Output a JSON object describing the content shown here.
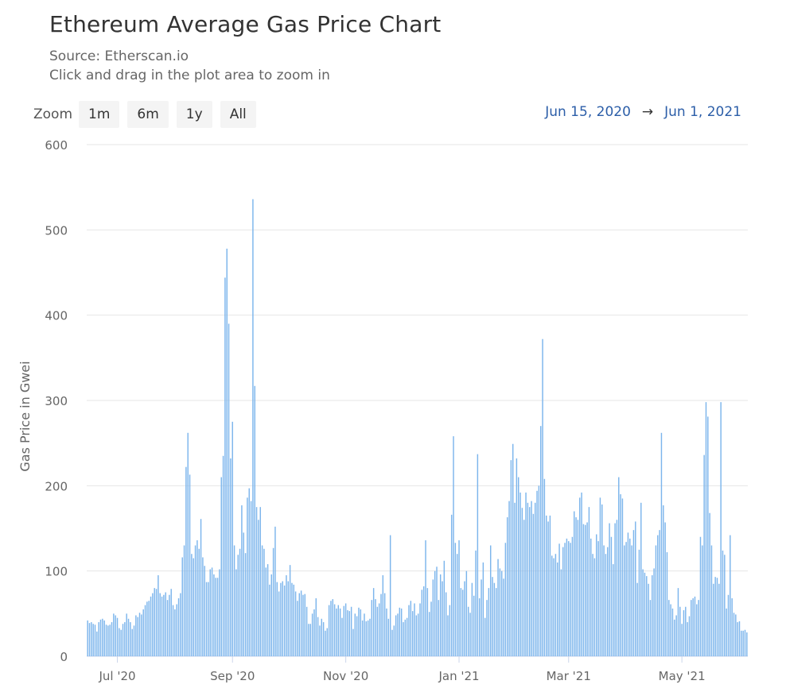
{
  "header": {
    "title": "Ethereum Average Gas Price Chart",
    "source": "Source: Etherscan.io",
    "hint": "Click and drag in the plot area to zoom in"
  },
  "zoom": {
    "label": "Zoom",
    "buttons": [
      "1m",
      "6m",
      "1y",
      "All"
    ]
  },
  "range": {
    "from": "Jun 15, 2020",
    "arrow": "→",
    "to": "Jun 1, 2021"
  },
  "colors": {
    "bar": "#7cb5ec",
    "grid": "#e6e6e6",
    "range_text": "#2c5ea8"
  },
  "chart_data": {
    "type": "bar",
    "title": "Ethereum Average Gas Price Chart",
    "xlabel": "",
    "ylabel": "Gas Price in Gwei",
    "ylim": [
      0,
      600
    ],
    "yticks": [
      0,
      100,
      200,
      300,
      400,
      500,
      600
    ],
    "x_start": "2020-06-15",
    "x_end": "2021-06-01",
    "xticks": [
      {
        "label": "Jul '20",
        "day": 16
      },
      {
        "label": "Sep '20",
        "day": 78
      },
      {
        "label": "Nov '20",
        "day": 139
      },
      {
        "label": "Jan '21",
        "day": 200
      },
      {
        "label": "Mar '21",
        "day": 259
      },
      {
        "label": "May '21",
        "day": 320
      }
    ],
    "values": [
      42,
      39,
      40,
      38,
      37,
      29,
      40,
      43,
      44,
      42,
      37,
      36,
      37,
      40,
      50,
      48,
      45,
      33,
      31,
      38,
      40,
      50,
      44,
      40,
      32,
      36,
      48,
      46,
      51,
      49,
      55,
      60,
      64,
      65,
      70,
      74,
      80,
      79,
      95,
      74,
      70,
      72,
      75,
      66,
      72,
      79,
      60,
      55,
      61,
      68,
      74,
      116,
      130,
      222,
      262,
      213,
      120,
      115,
      130,
      136,
      126,
      161,
      116,
      106,
      87,
      87,
      102,
      104,
      96,
      92,
      92,
      102,
      210,
      235,
      444,
      478,
      390,
      232,
      275,
      130,
      102,
      119,
      126,
      177,
      145,
      121,
      186,
      197,
      182,
      536,
      317,
      175,
      160,
      175,
      130,
      126,
      104,
      108,
      84,
      96,
      127,
      152,
      87,
      76,
      86,
      88,
      83,
      95,
      88,
      107,
      86,
      84,
      76,
      65,
      74,
      77,
      72,
      73,
      58,
      38,
      38,
      50,
      55,
      68,
      46,
      36,
      44,
      40,
      30,
      33,
      60,
      65,
      67,
      61,
      56,
      60,
      56,
      45,
      59,
      62,
      54,
      53,
      58,
      32,
      50,
      47,
      57,
      55,
      42,
      50,
      41,
      42,
      44,
      66,
      80,
      67,
      58,
      62,
      73,
      95,
      74,
      56,
      44,
      142,
      31,
      36,
      48,
      50,
      57,
      56,
      40,
      43,
      45,
      60,
      65,
      53,
      62,
      48,
      50,
      62,
      78,
      82,
      136,
      80,
      52,
      64,
      90,
      100,
      105,
      66,
      96,
      88,
      112,
      75,
      48,
      60,
      166,
      258,
      133,
      120,
      136,
      80,
      78,
      88,
      100,
      58,
      51,
      86,
      71,
      124,
      237,
      68,
      90,
      110,
      45,
      66,
      80,
      130,
      93,
      86,
      80,
      114,
      103,
      100,
      91,
      133,
      163,
      182,
      230,
      249,
      180,
      232,
      210,
      192,
      174,
      160,
      192,
      180,
      175,
      182,
      167,
      180,
      194,
      200,
      270,
      372,
      208,
      165,
      158,
      165,
      118,
      115,
      120,
      110,
      132,
      102,
      128,
      133,
      138,
      135,
      133,
      140,
      170,
      163,
      160,
      186,
      192,
      155,
      154,
      157,
      175,
      138,
      120,
      115,
      143,
      135,
      186,
      178,
      130,
      120,
      128,
      156,
      140,
      108,
      156,
      160,
      210,
      190,
      185,
      130,
      134,
      145,
      138,
      130,
      148,
      158,
      86,
      125,
      180,
      102,
      98,
      94,
      85,
      66,
      95,
      103,
      130,
      142,
      148,
      262,
      177,
      157,
      122,
      66,
      61,
      56,
      43,
      48,
      80,
      58,
      38,
      54,
      58,
      40,
      47,
      66,
      68,
      70,
      61,
      66,
      140,
      130,
      236,
      298,
      281,
      168,
      130,
      85,
      93,
      92,
      85,
      298,
      124,
      119,
      56,
      72,
      142,
      68,
      51,
      49,
      40,
      41,
      30,
      30,
      31,
      28
    ]
  }
}
